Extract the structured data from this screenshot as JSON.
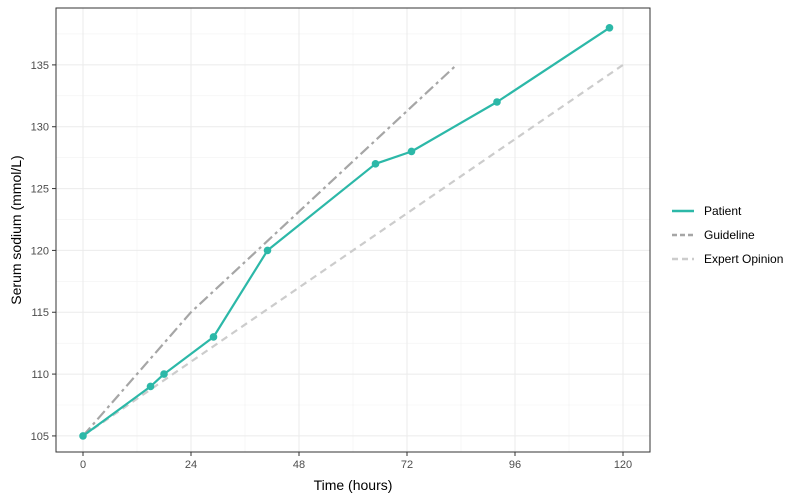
{
  "chart_data": {
    "type": "line",
    "title": "",
    "xlabel": "Time (hours)",
    "ylabel": "Serum sodium (mmol/L)",
    "xlim": [
      -6,
      126
    ],
    "ylim": [
      103.7,
      139.6
    ],
    "xticks": [
      0,
      24,
      48,
      72,
      96,
      120
    ],
    "yticks": [
      105,
      110,
      115,
      120,
      125,
      130,
      135
    ],
    "grid": true,
    "legend_position": "right",
    "series": [
      {
        "name": "Patient",
        "color": "#2cb8a8",
        "style": "solid",
        "markers": true,
        "x": [
          0,
          15,
          18,
          29,
          41,
          65,
          73,
          92,
          117
        ],
        "y": [
          105,
          109,
          110,
          113,
          120,
          127,
          128,
          132,
          138
        ]
      },
      {
        "name": "Guideline",
        "color": "#a6a6a6",
        "style": "dashdot",
        "markers": false,
        "x": [
          0,
          24,
          83
        ],
        "y": [
          105,
          115,
          135
        ]
      },
      {
        "name": "Expert Opinion",
        "color": "#cccccc",
        "style": "dashed",
        "markers": false,
        "x": [
          0,
          120
        ],
        "y": [
          105,
          135
        ]
      }
    ]
  }
}
